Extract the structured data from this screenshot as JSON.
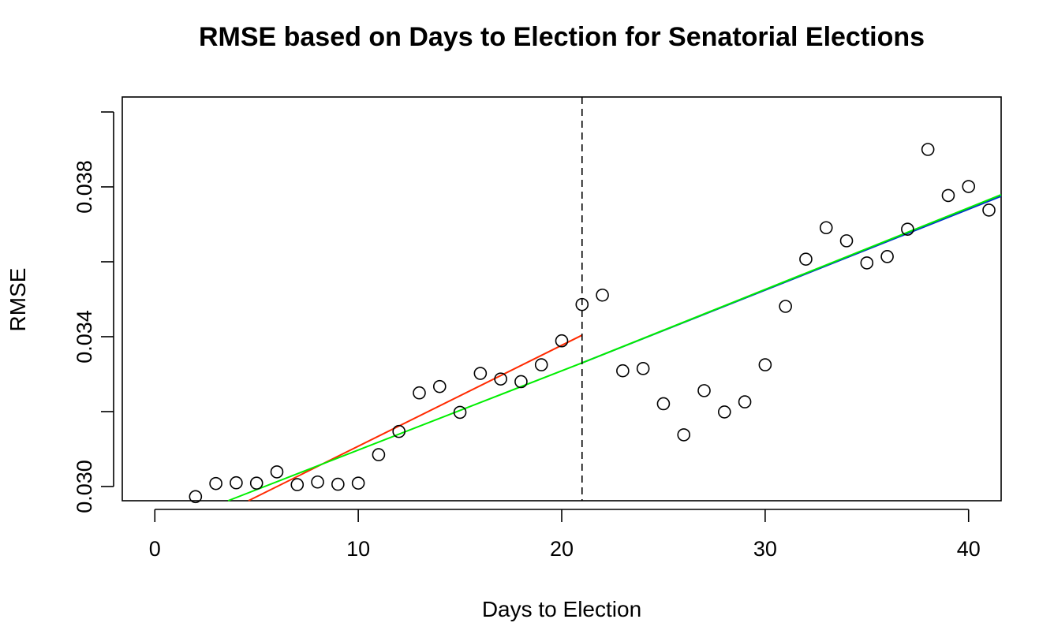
{
  "chart_data": {
    "type": "scatter",
    "title": "RMSE based on Days to Election for Senatorial Elections",
    "xlabel": "Days to Election",
    "ylabel": "RMSE",
    "xlim": [
      -1.6,
      41.6
    ],
    "ylim": [
      0.02962,
      0.0404
    ],
    "x_ticks": [
      0,
      10,
      20,
      30,
      40
    ],
    "x_tick_labels": [
      "0",
      "10",
      "20",
      "30",
      "40"
    ],
    "y_ticks": [
      0.03,
      0.032,
      0.034,
      0.036,
      0.038,
      0.04
    ],
    "y_tick_labels": [
      "0.030",
      "",
      "0.034",
      "",
      "0.038",
      ""
    ],
    "grid": false,
    "points": {
      "x": [
        2,
        3,
        4,
        5,
        6,
        7,
        8,
        9,
        10,
        11,
        12,
        13,
        14,
        15,
        16,
        17,
        18,
        19,
        20,
        21,
        22,
        23,
        24,
        25,
        26,
        27,
        28,
        29,
        30,
        31,
        32,
        33,
        34,
        35,
        36,
        37,
        38,
        39,
        40,
        41
      ],
      "y": [
        0.02973,
        0.03008,
        0.0301,
        0.03009,
        0.03039,
        0.03005,
        0.03012,
        0.03006,
        0.03009,
        0.03085,
        0.03147,
        0.0325,
        0.03267,
        0.03198,
        0.03302,
        0.03287,
        0.0328,
        0.03325,
        0.03389,
        0.03486,
        0.03511,
        0.03309,
        0.03315,
        0.03221,
        0.03138,
        0.03256,
        0.03199,
        0.03226,
        0.03325,
        0.03481,
        0.03607,
        0.03691,
        0.03656,
        0.03597,
        0.03614,
        0.03687,
        0.039,
        0.03777,
        0.03801,
        0.03738
      ]
    },
    "lines": [
      {
        "color": "#ff2a00",
        "x": [
          4.6,
          21
        ],
        "y": [
          0.02962,
          0.03404
        ]
      },
      {
        "color": "#00ee00",
        "x": [
          3.6,
          21
        ],
        "y": [
          0.02962,
          0.0333
        ]
      },
      {
        "color": "#0033cc",
        "x": [
          21,
          41.6
        ],
        "y": [
          0.0333,
          0.03775
        ]
      },
      {
        "color": "#00ee00",
        "x": [
          21,
          41.6
        ],
        "y": [
          0.0333,
          0.03779
        ]
      }
    ],
    "vline": {
      "x": 21,
      "style": "dashed"
    }
  }
}
